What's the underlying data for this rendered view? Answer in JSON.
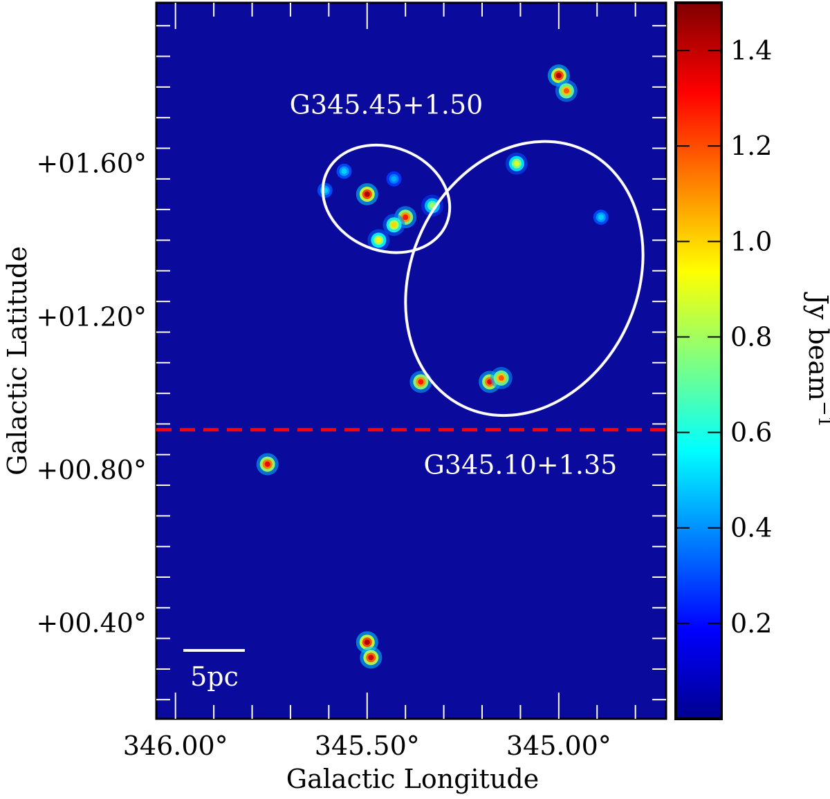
{
  "chart_data": {
    "type": "heatmap",
    "xlabel": "Galactic Longitude",
    "ylabel": "Galactic Latitude",
    "xlim": [
      346.05,
      344.72
    ],
    "ylim": [
      0.15,
      2.02
    ],
    "x_ticks": [
      {
        "value": 346.0,
        "label": "346.00°"
      },
      {
        "value": 345.5,
        "label": "345.50°"
      },
      {
        "value": 345.0,
        "label": "345.00°"
      }
    ],
    "y_ticks": [
      {
        "value": 1.6,
        "label": "+01.60°"
      },
      {
        "value": 1.2,
        "label": "+01.20°"
      },
      {
        "value": 0.8,
        "label": "+00.80°"
      },
      {
        "value": 0.4,
        "label": "+00.40°"
      }
    ],
    "colorbar": {
      "label": "Jy beam",
      "label_exponent": "−1",
      "range": [
        0.0,
        1.5
      ],
      "ticks": [
        {
          "value": 0.2,
          "label": "0.2"
        },
        {
          "value": 0.4,
          "label": "0.4"
        },
        {
          "value": 0.6,
          "label": "0.6"
        },
        {
          "value": 0.8,
          "label": "0.8"
        },
        {
          "value": 1.0,
          "label": "1.0"
        },
        {
          "value": 1.2,
          "label": "1.2"
        },
        {
          "value": 1.4,
          "label": "1.4"
        }
      ],
      "colors": [
        "#00008f",
        "#0000ff",
        "#0080ff",
        "#00ffff",
        "#80ff80",
        "#ffff00",
        "#ff8000",
        "#ff0000",
        "#800000"
      ]
    },
    "background_color": "#0a0a9c",
    "annotations": [
      {
        "text": "G345.45+1.50",
        "l": 345.45,
        "b": 1.73
      },
      {
        "text": "G345.10+1.35",
        "l": 345.1,
        "b": 0.79
      }
    ],
    "ellipses": [
      {
        "name": "G345.45+1.50",
        "center_l": 345.45,
        "center_b": 1.508,
        "width_deg": 0.34,
        "height_deg": 0.27
      },
      {
        "name": "G345.10+1.35",
        "center_l": 345.09,
        "center_b": 1.3,
        "width_deg": 0.59,
        "height_deg": 0.74
      }
    ],
    "divider": {
      "b": 0.905,
      "color": "#ff0000",
      "style": "dashed"
    },
    "scale_bar": {
      "label": "5pc"
    },
    "sources": [
      {
        "l": 345.0,
        "b": 1.83,
        "peak": 1.45
      },
      {
        "l": 344.98,
        "b": 1.79,
        "peak": 1.2
      },
      {
        "l": 345.5,
        "b": 1.52,
        "peak": 1.45
      },
      {
        "l": 345.4,
        "b": 1.46,
        "peak": 1.3
      },
      {
        "l": 345.43,
        "b": 1.44,
        "peak": 1.0
      },
      {
        "l": 345.47,
        "b": 1.4,
        "peak": 0.95
      },
      {
        "l": 345.33,
        "b": 1.49,
        "peak": 0.8
      },
      {
        "l": 345.36,
        "b": 1.03,
        "peak": 1.3
      },
      {
        "l": 345.18,
        "b": 1.03,
        "peak": 1.35
      },
      {
        "l": 345.15,
        "b": 1.04,
        "peak": 1.2
      },
      {
        "l": 345.11,
        "b": 1.6,
        "peak": 0.9
      },
      {
        "l": 344.89,
        "b": 1.46,
        "peak": 0.5
      },
      {
        "l": 345.76,
        "b": 0.815,
        "peak": 1.35
      },
      {
        "l": 345.5,
        "b": 0.35,
        "peak": 1.45
      },
      {
        "l": 345.49,
        "b": 0.31,
        "peak": 1.4
      },
      {
        "l": 345.56,
        "b": 1.58,
        "peak": 0.5
      },
      {
        "l": 345.43,
        "b": 1.56,
        "peak": 0.45
      },
      {
        "l": 345.61,
        "b": 1.53,
        "peak": 0.5
      }
    ]
  }
}
